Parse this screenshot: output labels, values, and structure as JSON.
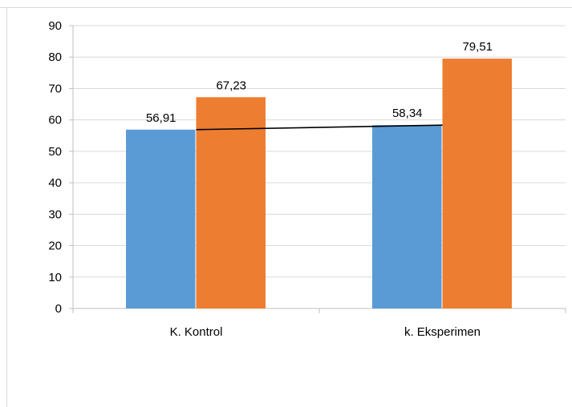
{
  "chart_data": {
    "type": "bar",
    "categories": [
      "K. Kontrol",
      "k. Eksperimen"
    ],
    "series": [
      {
        "values": [
          56.91,
          58.34
        ],
        "labels": [
          "56,91",
          "58,34"
        ],
        "color": "#5b9bd5"
      },
      {
        "values": [
          67.23,
          79.51
        ],
        "labels": [
          "67,23",
          "79,51"
        ],
        "color": "#ed7d31"
      }
    ],
    "trendline": {
      "series_index": 0,
      "color": "#000000"
    },
    "yticks": [
      "0",
      "10",
      "20",
      "30",
      "40",
      "50",
      "60",
      "70",
      "80",
      "90"
    ],
    "ylim": [
      0,
      90
    ],
    "grid": true,
    "title": "",
    "xlabel": "",
    "ylabel": ""
  }
}
